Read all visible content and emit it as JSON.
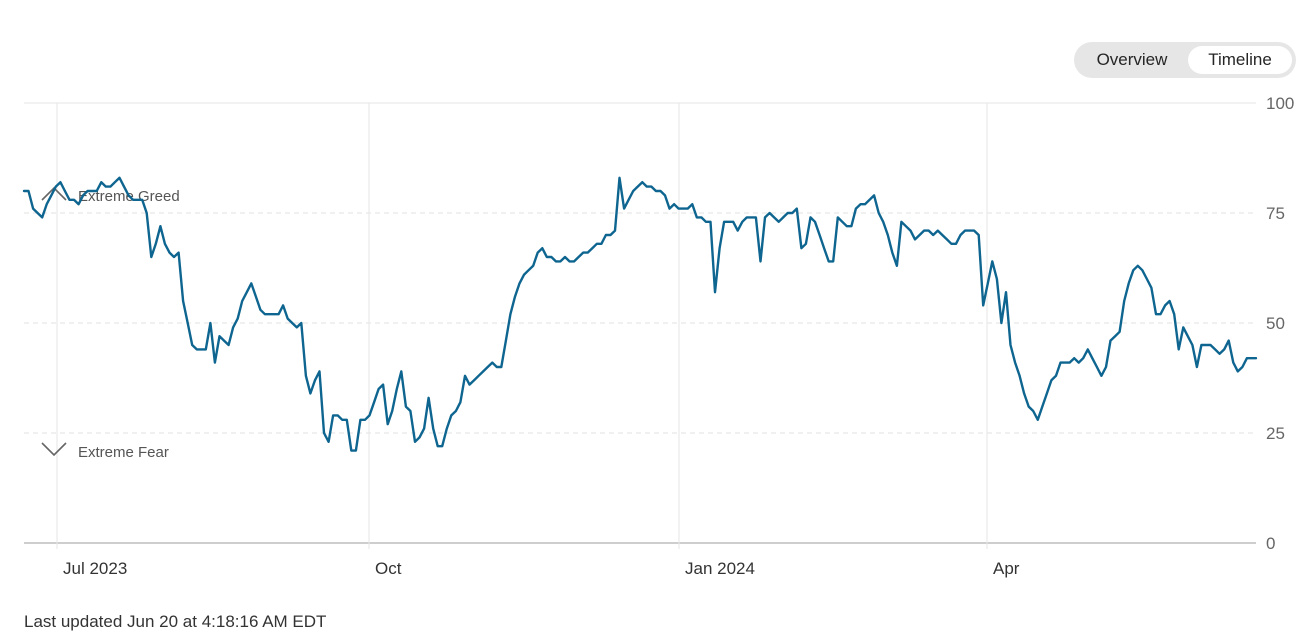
{
  "toggle": {
    "options": [
      "Overview",
      "Timeline"
    ],
    "selected": "Timeline"
  },
  "footer": {
    "text": "Last updated Jun 20 at 4:18:16 AM EDT"
  },
  "colors": {
    "line": "#0e6590",
    "grid": "#e6e6e6",
    "axis": "#bdbdbd",
    "zone_marker": "#666666"
  },
  "chart_data": {
    "type": "line",
    "title": "",
    "xlabel": "",
    "ylabel": "",
    "ylim": [
      0,
      100
    ],
    "yticks": [
      0,
      25,
      50,
      75,
      100
    ],
    "xticks": [
      "Jul 2023",
      "Oct",
      "Jan 2024",
      "Apr"
    ],
    "grid": true,
    "zones": [
      {
        "label": "Extreme Greed",
        "marker": "chevron-up",
        "level": 80
      },
      {
        "label": "Extreme Fear",
        "marker": "chevron-down",
        "level": 22
      }
    ],
    "series": [
      {
        "values": [
          80,
          80,
          76,
          75,
          74,
          77,
          79,
          81,
          82,
          80,
          78,
          78,
          77,
          79,
          80,
          80,
          80,
          82,
          81,
          81,
          82,
          83,
          81,
          79,
          78,
          78,
          78,
          75,
          65,
          68,
          72,
          68,
          66,
          65,
          66,
          55,
          50,
          45,
          44,
          44,
          44,
          50,
          41,
          47,
          46,
          45,
          49,
          51,
          55,
          57,
          59,
          56,
          53,
          52,
          52,
          52,
          52,
          54,
          51,
          50,
          49,
          50,
          38,
          34,
          37,
          39,
          25,
          23,
          29,
          29,
          28,
          28,
          21,
          21,
          28,
          28,
          29,
          32,
          35,
          36,
          27,
          30,
          35,
          39,
          31,
          30,
          23,
          24,
          26,
          33,
          26,
          22,
          22,
          26,
          29,
          30,
          32,
          38,
          36,
          37,
          38,
          39,
          40,
          41,
          40,
          40,
          46,
          52,
          56,
          59,
          61,
          62,
          63,
          66,
          67,
          65,
          65,
          64,
          64,
          65,
          64,
          64,
          65,
          66,
          66,
          67,
          68,
          68,
          70,
          70,
          71,
          83,
          76,
          78,
          80,
          81,
          82,
          81,
          81,
          80,
          80,
          79,
          76,
          77,
          76,
          76,
          76,
          77,
          74,
          74,
          73,
          73,
          57,
          67,
          73,
          73,
          73,
          71,
          73,
          74,
          74,
          74,
          64,
          74,
          75,
          74,
          73,
          74,
          75,
          75,
          76,
          67,
          68,
          74,
          73,
          70,
          67,
          64,
          64,
          74,
          73,
          72,
          72,
          76,
          77,
          77,
          78,
          79,
          75,
          73,
          70,
          66,
          63,
          73,
          72,
          71,
          69,
          70,
          71,
          71,
          70,
          71,
          70,
          69,
          68,
          68,
          70,
          71,
          71,
          71,
          70,
          54,
          59,
          64,
          60,
          50,
          57,
          45,
          41,
          38,
          34,
          31,
          30,
          28,
          31,
          34,
          37,
          38,
          41,
          41,
          41,
          42,
          41,
          42,
          44,
          42,
          40,
          38,
          40,
          46,
          47,
          48,
          55,
          59,
          62,
          63,
          62,
          60,
          58,
          52,
          52,
          54,
          55,
          52,
          44,
          49,
          47,
          45,
          40,
          45,
          45,
          45,
          44,
          43,
          44,
          46,
          41,
          39,
          40,
          42,
          42,
          42
        ]
      }
    ]
  }
}
